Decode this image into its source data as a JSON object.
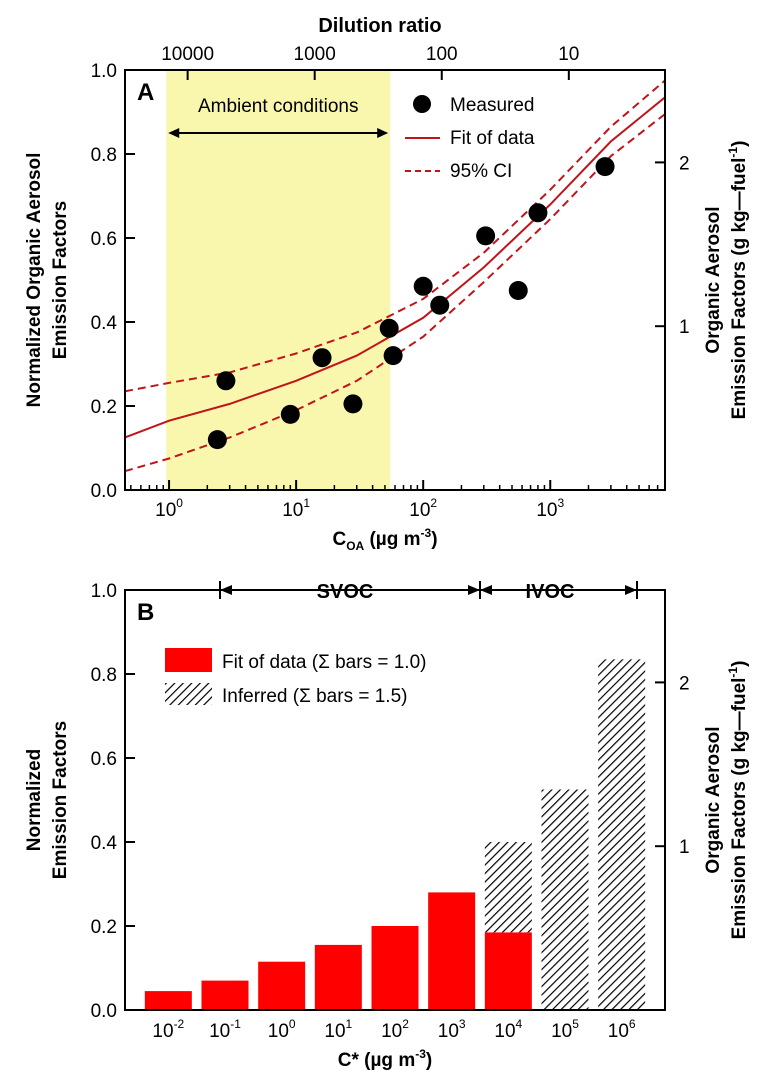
{
  "chart_data": [
    {
      "panel": "A",
      "type": "scatter",
      "xlabel_main": "C",
      "xlabel_sub": "OA",
      "xlabel_unit": " (µg m",
      "xlabel_exp": "-3",
      "xlabel_close": ")",
      "top_axis_label": "Dilution ratio",
      "top_ticks": [
        {
          "label": "10000",
          "x_coa": 1.4
        },
        {
          "label": "1000",
          "x_coa": 14
        },
        {
          "label": "100",
          "x_coa": 140
        },
        {
          "label": "10",
          "x_coa": 1400
        }
      ],
      "ylabel_left": [
        "Normalized Organic Aerosol",
        "Emission Factors"
      ],
      "ylabel_right": [
        "Organic Aerosol",
        "Emission Factors (g kg—fuel",
        "-1",
        ")"
      ],
      "x_scale": "log",
      "xlim": [
        0.45,
        8000
      ],
      "ylim": [
        0,
        1.0
      ],
      "x_ticks": [
        {
          "base": "10",
          "exp": "0",
          "value": 1
        },
        {
          "base": "10",
          "exp": "1",
          "value": 10
        },
        {
          "base": "10",
          "exp": "2",
          "value": 100
        },
        {
          "base": "10",
          "exp": "3",
          "value": 1000
        }
      ],
      "y_ticks": [
        "0.0",
        "0.2",
        "0.4",
        "0.6",
        "0.8",
        "1.0"
      ],
      "right_ticks": [
        {
          "label": "1",
          "value": 0.39
        },
        {
          "label": "2",
          "value": 0.78
        }
      ],
      "shaded_region": {
        "label": "Ambient conditions",
        "x_range": [
          0.95,
          55
        ],
        "color": "#f9f7ad"
      },
      "measured": [
        {
          "x": 2.4,
          "y": 0.12
        },
        {
          "x": 2.8,
          "y": 0.26
        },
        {
          "x": 9,
          "y": 0.18
        },
        {
          "x": 16,
          "y": 0.315
        },
        {
          "x": 28,
          "y": 0.205
        },
        {
          "x": 54,
          "y": 0.385
        },
        {
          "x": 58,
          "y": 0.32
        },
        {
          "x": 100,
          "y": 0.485
        },
        {
          "x": 135,
          "y": 0.44
        },
        {
          "x": 310,
          "y": 0.605
        },
        {
          "x": 560,
          "y": 0.475
        },
        {
          "x": 800,
          "y": 0.66
        },
        {
          "x": 2700,
          "y": 0.77
        }
      ],
      "fit": [
        {
          "x": 0.45,
          "y": 0.125
        },
        {
          "x": 1,
          "y": 0.165
        },
        {
          "x": 3,
          "y": 0.205
        },
        {
          "x": 10,
          "y": 0.26
        },
        {
          "x": 30,
          "y": 0.32
        },
        {
          "x": 100,
          "y": 0.41
        },
        {
          "x": 300,
          "y": 0.53
        },
        {
          "x": 1000,
          "y": 0.68
        },
        {
          "x": 3000,
          "y": 0.83
        },
        {
          "x": 8000,
          "y": 0.935
        }
      ],
      "ci_upper": [
        {
          "x": 0.45,
          "y": 0.235
        },
        {
          "x": 1,
          "y": 0.255
        },
        {
          "x": 3,
          "y": 0.28
        },
        {
          "x": 10,
          "y": 0.325
        },
        {
          "x": 30,
          "y": 0.375
        },
        {
          "x": 100,
          "y": 0.455
        },
        {
          "x": 300,
          "y": 0.565
        },
        {
          "x": 1000,
          "y": 0.715
        },
        {
          "x": 3000,
          "y": 0.865
        },
        {
          "x": 8000,
          "y": 0.975
        }
      ],
      "ci_lower": [
        {
          "x": 0.45,
          "y": 0.045
        },
        {
          "x": 1,
          "y": 0.075
        },
        {
          "x": 3,
          "y": 0.125
        },
        {
          "x": 10,
          "y": 0.19
        },
        {
          "x": 30,
          "y": 0.26
        },
        {
          "x": 100,
          "y": 0.365
        },
        {
          "x": 300,
          "y": 0.495
        },
        {
          "x": 1000,
          "y": 0.645
        },
        {
          "x": 3000,
          "y": 0.795
        },
        {
          "x": 8000,
          "y": 0.895
        }
      ],
      "legend": [
        {
          "label": "Measured",
          "kind": "marker"
        },
        {
          "label": "Fit of data",
          "kind": "solid"
        },
        {
          "label": "95% CI",
          "kind": "dashed"
        }
      ],
      "colors": {
        "fit": "#c0141b",
        "marker": "#000000"
      }
    },
    {
      "panel": "B",
      "type": "bar",
      "categories": [
        {
          "base": "10",
          "exp": "-2"
        },
        {
          "base": "10",
          "exp": "-1"
        },
        {
          "base": "10",
          "exp": "0"
        },
        {
          "base": "10",
          "exp": "1"
        },
        {
          "base": "10",
          "exp": "2"
        },
        {
          "base": "10",
          "exp": "3"
        },
        {
          "base": "10",
          "exp": "4"
        },
        {
          "base": "10",
          "exp": "5"
        },
        {
          "base": "10",
          "exp": "6"
        }
      ],
      "series": [
        {
          "name": "Fit of data (Σ bars = 1.0)",
          "values": [
            0.045,
            0.07,
            0.115,
            0.155,
            0.2,
            0.28,
            0.185,
            0,
            0
          ],
          "color": "#ff0000"
        },
        {
          "name": "Inferred (Σ bars = 1.5)",
          "values": [
            0,
            0,
            0,
            0,
            0,
            0,
            0.215,
            0.525,
            0.835
          ],
          "pattern": "hatched"
        }
      ],
      "xlabel": "C* (µg m",
      "xlabel_exp": "-3",
      "xlabel_close": ")",
      "ylabel_left": [
        "Normalized",
        "Emission Factors"
      ],
      "ylabel_right": [
        "Organic Aerosol",
        "Emission Factors (g kg—fuel",
        "-1",
        ")"
      ],
      "ylim": [
        0,
        1.0
      ],
      "y_ticks": [
        "0.0",
        "0.2",
        "0.4",
        "0.6",
        "0.8",
        "1.0"
      ],
      "right_ticks": [
        {
          "label": "1",
          "value": 0.39
        },
        {
          "label": "2",
          "value": 0.78
        }
      ],
      "ranges": [
        {
          "label": "SVOC"
        },
        {
          "label": "IVOC"
        }
      ]
    }
  ]
}
